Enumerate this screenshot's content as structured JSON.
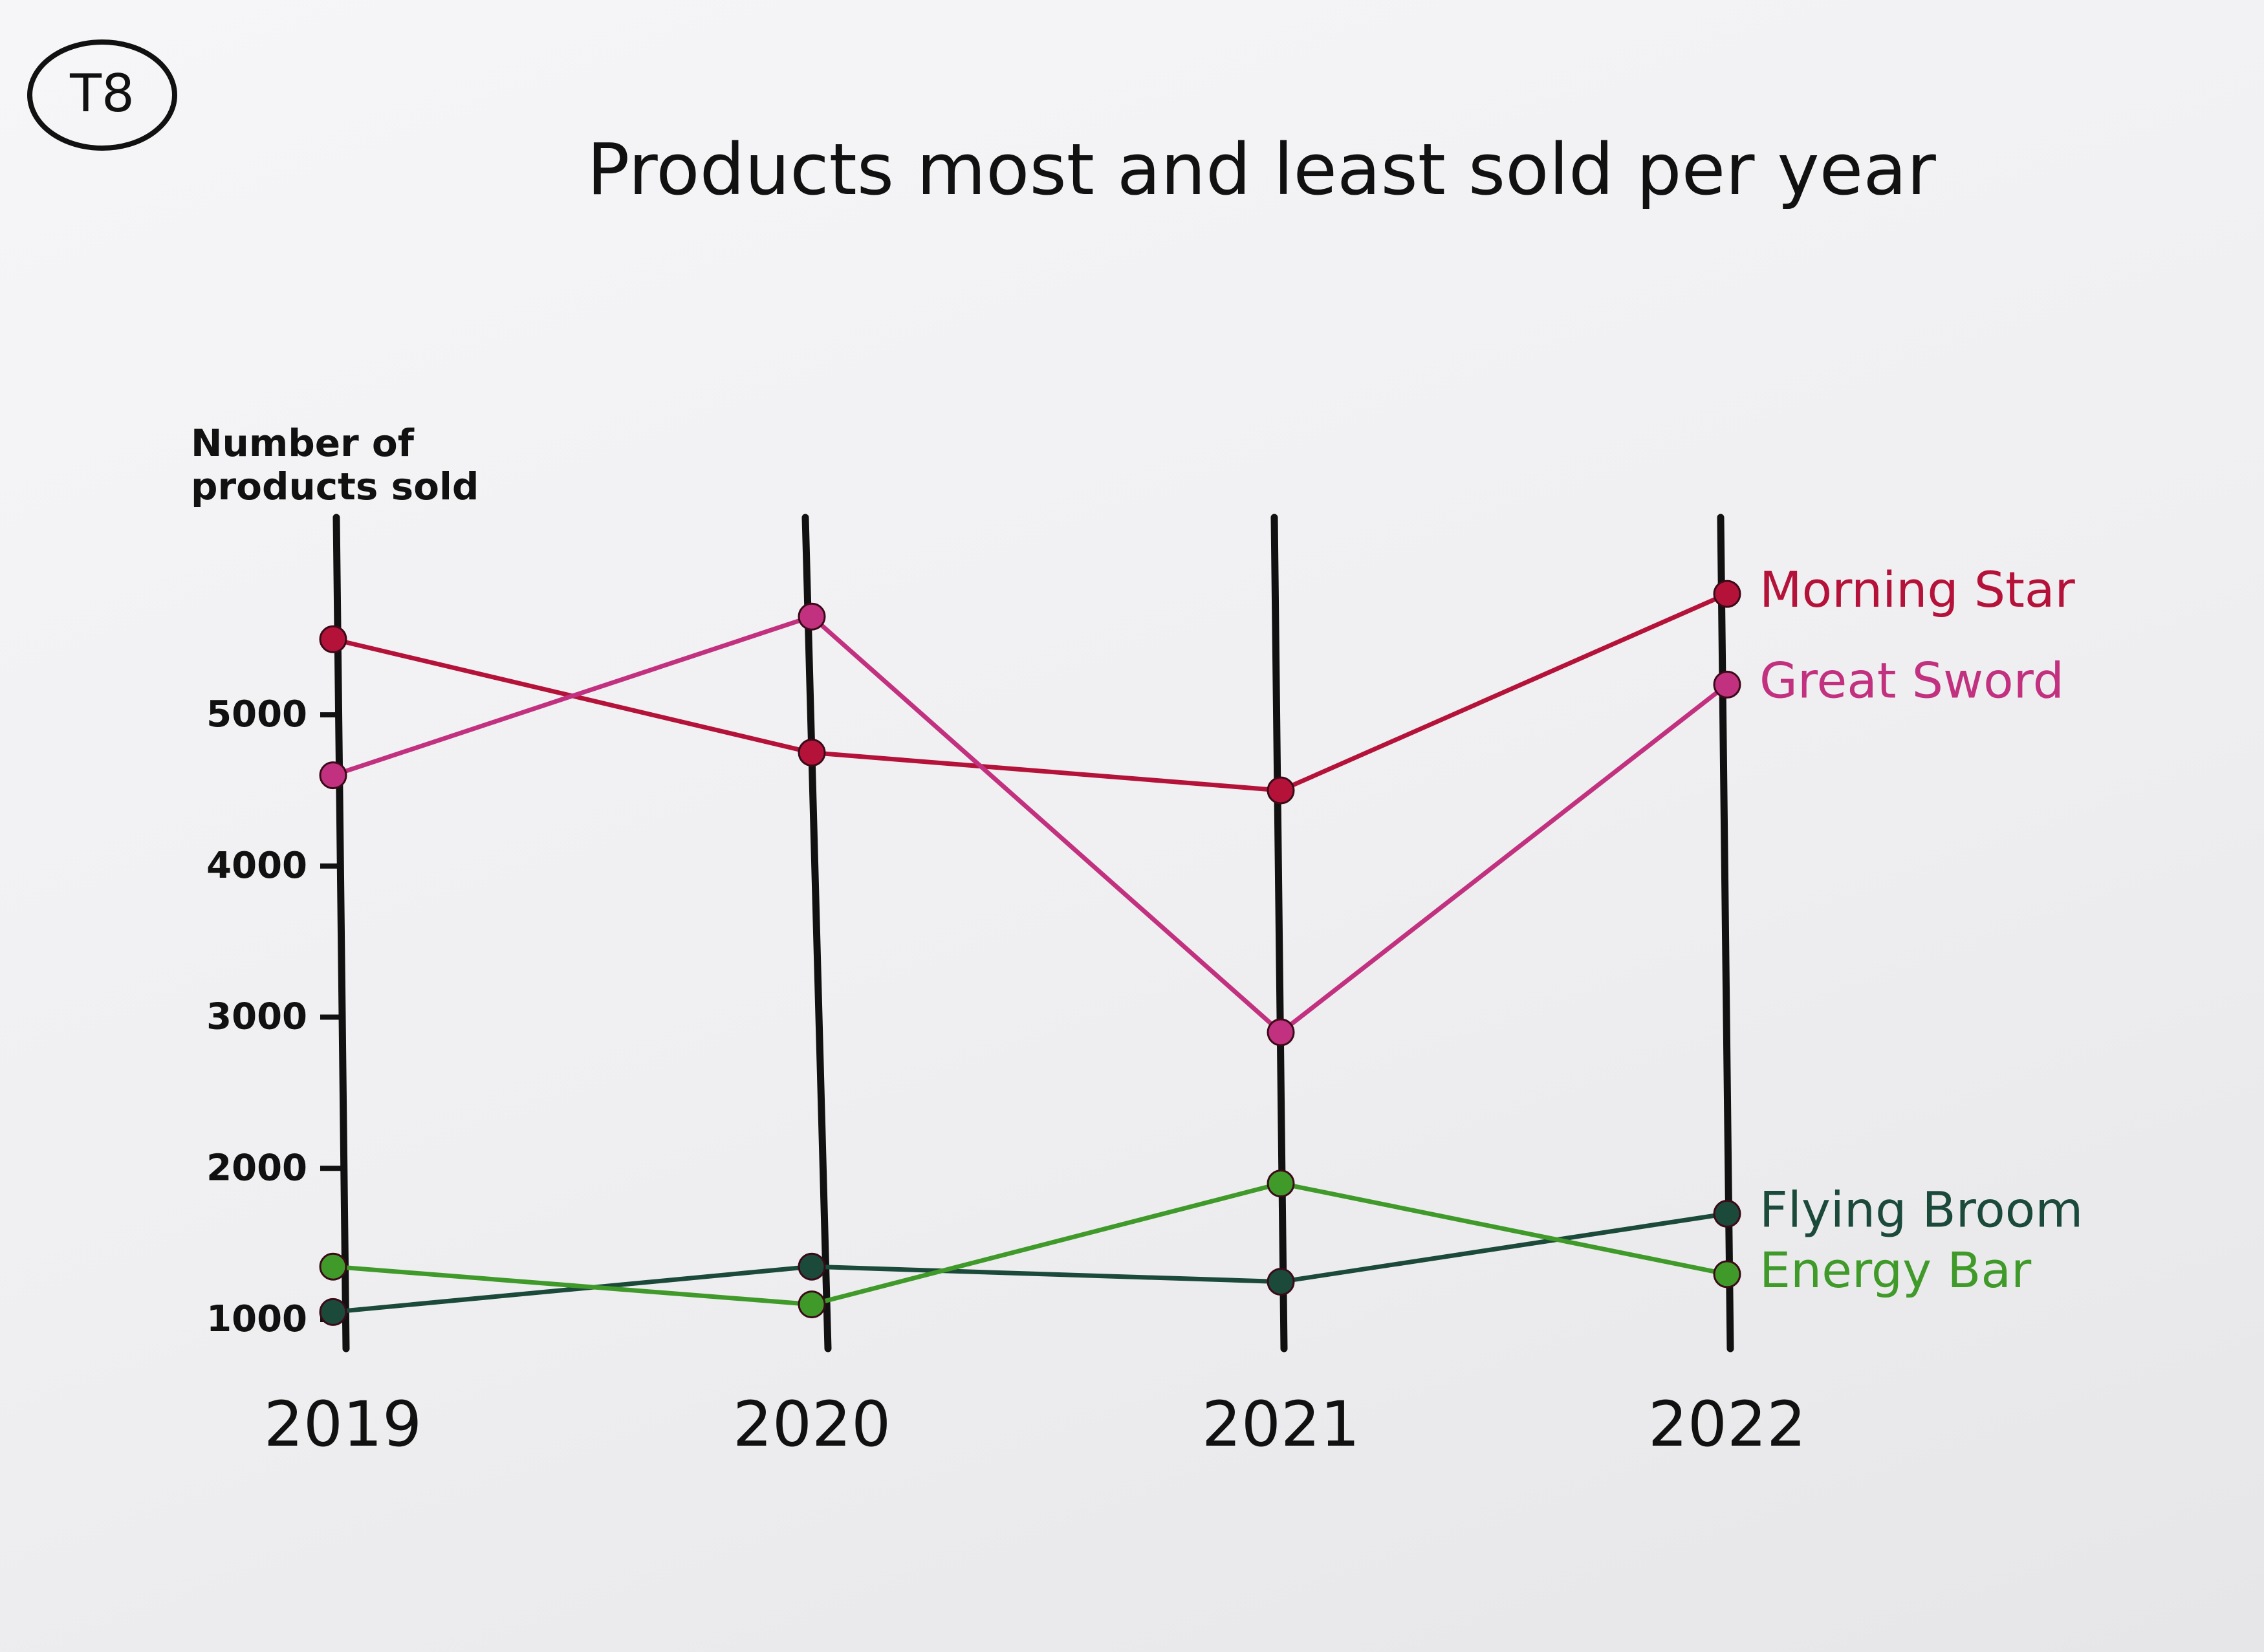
{
  "badge": "T8",
  "chart_data": {
    "type": "line",
    "title": "Products most and least sold per year",
    "ylabel": "Number of products sold",
    "xlabel": "",
    "categories": [
      "2019",
      "2020",
      "2021",
      "2022"
    ],
    "y_ticks": [
      {
        "value": 1000,
        "label": "1000"
      },
      {
        "value": 2000,
        "label": "2000"
      },
      {
        "value": 3000,
        "label": "3000"
      },
      {
        "value": 4000,
        "label": "4000"
      },
      {
        "value": 5000,
        "label": "5000"
      }
    ],
    "ylim": [
      1000,
      5400
    ],
    "grid": false,
    "legend": "labels at the right end of each line",
    "series": [
      {
        "name": "Morning Star",
        "color": "#b5123a",
        "values": [
          5500,
          4750,
          4500,
          5800
        ]
      },
      {
        "name": "Great Sword",
        "color": "#c2317f",
        "values": [
          4600,
          5650,
          2900,
          5200
        ]
      },
      {
        "name": "Flying Broom",
        "color": "#1b4a3a",
        "values": [
          1050,
          1350,
          1250,
          1700
        ]
      },
      {
        "name": "Energy Bar",
        "color": "#3f9a2a",
        "values": [
          1350,
          1100,
          1900,
          1300
        ]
      }
    ]
  }
}
